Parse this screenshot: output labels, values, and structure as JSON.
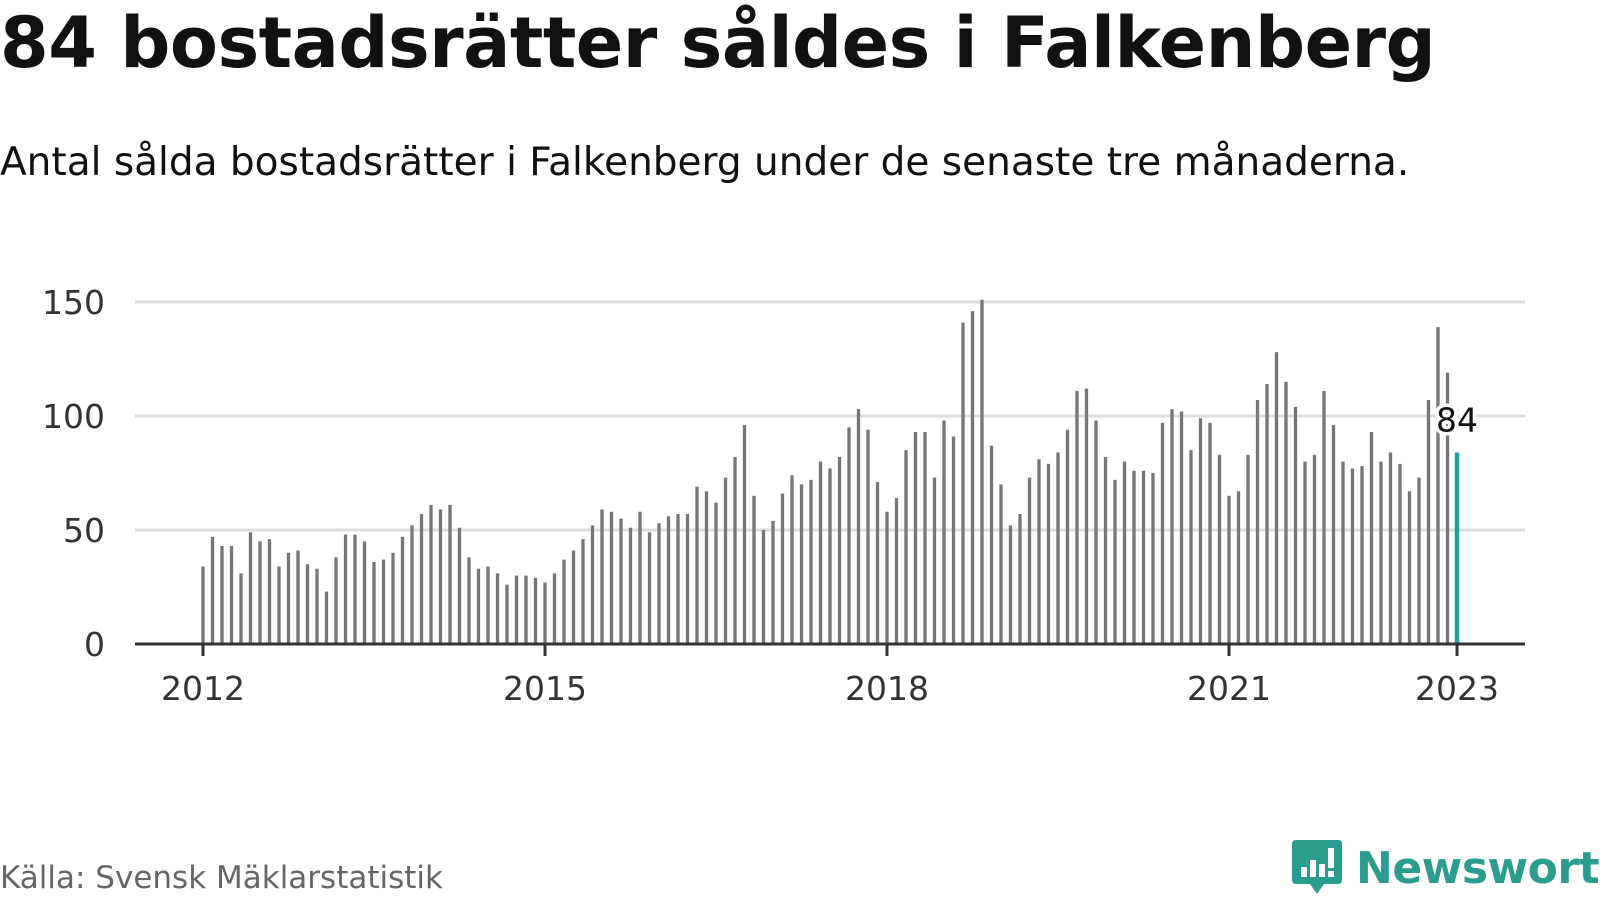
{
  "title": "84 bostadsrätter såldes i Falkenberg",
  "subtitle": "Antal sålda bostadsrätter i Falkenberg under de senaste tre månaderna.",
  "source": "Källa: Svensk Mäklarstatistik",
  "brand": "Newsworthy",
  "colors": {
    "bar": "#76767a",
    "highlight": "#1aa59a",
    "grid": "#dcdcdc",
    "axis": "#333333",
    "brand": "#2a9d8f"
  },
  "chart_data": {
    "type": "bar",
    "x_start": "2012-01",
    "x_end": "2023-01",
    "frequency": "monthly",
    "values": [
      34,
      47,
      43,
      43,
      31,
      49,
      45,
      46,
      34,
      40,
      41,
      35,
      33,
      23,
      38,
      48,
      48,
      45,
      36,
      37,
      40,
      47,
      52,
      57,
      61,
      59,
      61,
      51,
      38,
      33,
      34,
      31,
      26,
      30,
      30,
      29,
      27,
      31,
      37,
      41,
      46,
      52,
      59,
      58,
      55,
      51,
      58,
      49,
      53,
      56,
      57,
      57,
      69,
      67,
      62,
      73,
      82,
      96,
      65,
      50,
      54,
      66,
      74,
      70,
      72,
      80,
      77,
      82,
      95,
      103,
      94,
      71,
      58,
      64,
      85,
      93,
      93,
      73,
      98,
      91,
      141,
      146,
      151,
      87,
      70,
      52,
      57,
      73,
      81,
      79,
      84,
      94,
      111,
      112,
      98,
      82,
      72,
      80,
      76,
      76,
      75,
      97,
      103,
      102,
      85,
      99,
      97,
      83,
      65,
      67,
      83,
      107,
      114,
      128,
      115,
      104,
      80,
      83,
      111,
      96,
      80,
      77,
      78,
      93,
      80,
      84,
      79,
      67,
      73,
      107,
      139,
      119,
      84
    ],
    "highlight_last": 3,
    "value_label": "84",
    "xticks": [
      "2012",
      "2015",
      "2018",
      "2021",
      "2023"
    ],
    "yticks": [
      "0",
      "50",
      "100",
      "150"
    ],
    "ylim": [
      0,
      150
    ],
    "grid": true,
    "legend": false
  }
}
